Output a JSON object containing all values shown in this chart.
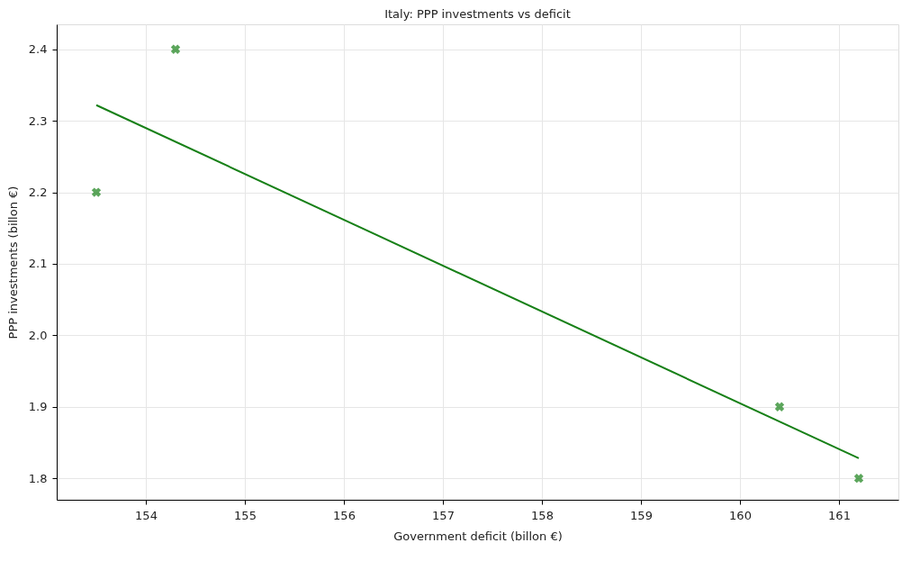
{
  "chart_data": {
    "type": "scatter",
    "title": "Italy: PPP investments vs deficit",
    "xlabel": "Government deficit (billon €)",
    "ylabel": "PPP investments (billon €)",
    "series": [
      {
        "color": "#178017",
        "marker": "cross",
        "x": [
          153.5,
          154.3,
          160.4,
          161.2
        ],
        "values": [
          2.2,
          2.4,
          1.9,
          1.8
        ]
      },
      {
        "type": "line",
        "color": "#178017",
        "line_style": "solid",
        "x": [
          153.5,
          161.2
        ],
        "values": [
          2.322,
          1.828
        ]
      }
    ],
    "xlim": [
      153.1,
      161.6
    ],
    "xticks": [
      154,
      155,
      156,
      157,
      158,
      159,
      160,
      161
    ],
    "ylim": [
      1.77,
      2.435
    ],
    "yticks": [
      1.8,
      1.9,
      {
        "value": 2.0,
        "label": "2.0"
      },
      2.1,
      2.2,
      2.3,
      2.4
    ],
    "grid": true
  }
}
